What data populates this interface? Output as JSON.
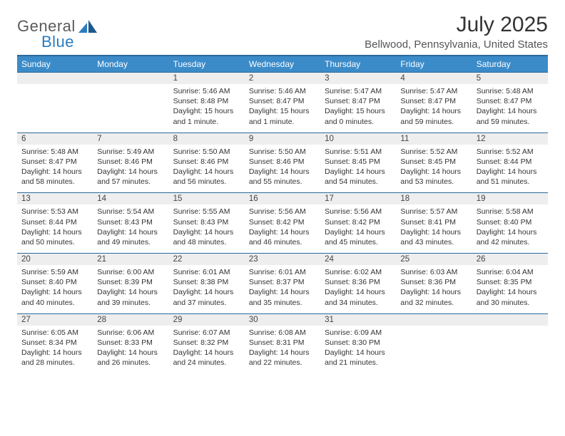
{
  "brand": {
    "part1": "General",
    "part2": "Blue"
  },
  "title": "July 2025",
  "location": "Bellwood, Pennsylvania, United States",
  "colors": {
    "header_bg": "#3b8bc9",
    "header_border": "#2b6a9a",
    "daynum_bg": "#eeeeee",
    "text": "#333333",
    "brand_gray": "#5a5a5a",
    "brand_blue": "#2b7bbf"
  },
  "weekdays": [
    "Sunday",
    "Monday",
    "Tuesday",
    "Wednesday",
    "Thursday",
    "Friday",
    "Saturday"
  ],
  "weeks": [
    [
      null,
      null,
      {
        "n": "1",
        "sr": "5:46 AM",
        "ss": "8:48 PM",
        "dl": "15 hours and 1 minute."
      },
      {
        "n": "2",
        "sr": "5:46 AM",
        "ss": "8:47 PM",
        "dl": "15 hours and 1 minute."
      },
      {
        "n": "3",
        "sr": "5:47 AM",
        "ss": "8:47 PM",
        "dl": "15 hours and 0 minutes."
      },
      {
        "n": "4",
        "sr": "5:47 AM",
        "ss": "8:47 PM",
        "dl": "14 hours and 59 minutes."
      },
      {
        "n": "5",
        "sr": "5:48 AM",
        "ss": "8:47 PM",
        "dl": "14 hours and 59 minutes."
      }
    ],
    [
      {
        "n": "6",
        "sr": "5:48 AM",
        "ss": "8:47 PM",
        "dl": "14 hours and 58 minutes."
      },
      {
        "n": "7",
        "sr": "5:49 AM",
        "ss": "8:46 PM",
        "dl": "14 hours and 57 minutes."
      },
      {
        "n": "8",
        "sr": "5:50 AM",
        "ss": "8:46 PM",
        "dl": "14 hours and 56 minutes."
      },
      {
        "n": "9",
        "sr": "5:50 AM",
        "ss": "8:46 PM",
        "dl": "14 hours and 55 minutes."
      },
      {
        "n": "10",
        "sr": "5:51 AM",
        "ss": "8:45 PM",
        "dl": "14 hours and 54 minutes."
      },
      {
        "n": "11",
        "sr": "5:52 AM",
        "ss": "8:45 PM",
        "dl": "14 hours and 53 minutes."
      },
      {
        "n": "12",
        "sr": "5:52 AM",
        "ss": "8:44 PM",
        "dl": "14 hours and 51 minutes."
      }
    ],
    [
      {
        "n": "13",
        "sr": "5:53 AM",
        "ss": "8:44 PM",
        "dl": "14 hours and 50 minutes."
      },
      {
        "n": "14",
        "sr": "5:54 AM",
        "ss": "8:43 PM",
        "dl": "14 hours and 49 minutes."
      },
      {
        "n": "15",
        "sr": "5:55 AM",
        "ss": "8:43 PM",
        "dl": "14 hours and 48 minutes."
      },
      {
        "n": "16",
        "sr": "5:56 AM",
        "ss": "8:42 PM",
        "dl": "14 hours and 46 minutes."
      },
      {
        "n": "17",
        "sr": "5:56 AM",
        "ss": "8:42 PM",
        "dl": "14 hours and 45 minutes."
      },
      {
        "n": "18",
        "sr": "5:57 AM",
        "ss": "8:41 PM",
        "dl": "14 hours and 43 minutes."
      },
      {
        "n": "19",
        "sr": "5:58 AM",
        "ss": "8:40 PM",
        "dl": "14 hours and 42 minutes."
      }
    ],
    [
      {
        "n": "20",
        "sr": "5:59 AM",
        "ss": "8:40 PM",
        "dl": "14 hours and 40 minutes."
      },
      {
        "n": "21",
        "sr": "6:00 AM",
        "ss": "8:39 PM",
        "dl": "14 hours and 39 minutes."
      },
      {
        "n": "22",
        "sr": "6:01 AM",
        "ss": "8:38 PM",
        "dl": "14 hours and 37 minutes."
      },
      {
        "n": "23",
        "sr": "6:01 AM",
        "ss": "8:37 PM",
        "dl": "14 hours and 35 minutes."
      },
      {
        "n": "24",
        "sr": "6:02 AM",
        "ss": "8:36 PM",
        "dl": "14 hours and 34 minutes."
      },
      {
        "n": "25",
        "sr": "6:03 AM",
        "ss": "8:36 PM",
        "dl": "14 hours and 32 minutes."
      },
      {
        "n": "26",
        "sr": "6:04 AM",
        "ss": "8:35 PM",
        "dl": "14 hours and 30 minutes."
      }
    ],
    [
      {
        "n": "27",
        "sr": "6:05 AM",
        "ss": "8:34 PM",
        "dl": "14 hours and 28 minutes."
      },
      {
        "n": "28",
        "sr": "6:06 AM",
        "ss": "8:33 PM",
        "dl": "14 hours and 26 minutes."
      },
      {
        "n": "29",
        "sr": "6:07 AM",
        "ss": "8:32 PM",
        "dl": "14 hours and 24 minutes."
      },
      {
        "n": "30",
        "sr": "6:08 AM",
        "ss": "8:31 PM",
        "dl": "14 hours and 22 minutes."
      },
      {
        "n": "31",
        "sr": "6:09 AM",
        "ss": "8:30 PM",
        "dl": "14 hours and 21 minutes."
      },
      null,
      null
    ]
  ],
  "labels": {
    "sunrise": "Sunrise:",
    "sunset": "Sunset:",
    "daylight": "Daylight:"
  }
}
